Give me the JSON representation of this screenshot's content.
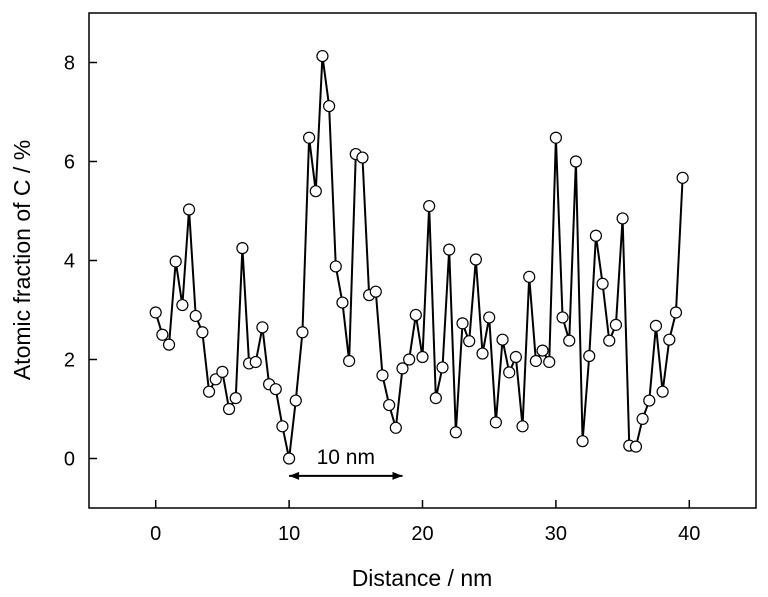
{
  "chart_data": {
    "type": "line",
    "title": "",
    "xlabel": "Distance / nm",
    "ylabel": "Atomic fraction of C / %",
    "xlim": [
      -5,
      45
    ],
    "ylim": [
      -1,
      9
    ],
    "xticks": [
      0,
      10,
      20,
      30,
      40
    ],
    "yticks": [
      0,
      2,
      4,
      6,
      8
    ],
    "grid": false,
    "marker": "open-circle",
    "series": [
      {
        "x": [
          0,
          0.5,
          1,
          1.5,
          2,
          2.5,
          3,
          3.5,
          4,
          4.5,
          5,
          5.5,
          6,
          6.5,
          7,
          7.5,
          8,
          8.5,
          9,
          9.5,
          10,
          10.5,
          11,
          11.5,
          12,
          12.5,
          13,
          13.5,
          14,
          14.5,
          15,
          15.5,
          16,
          16.5,
          17,
          17.5,
          18,
          18.5,
          19,
          19.5,
          20,
          20.5,
          21,
          21.5,
          22,
          22.5,
          23,
          23.5,
          24,
          24.5,
          25,
          25.5,
          26,
          26.5,
          27,
          27.5,
          28,
          28.5,
          29,
          29.5,
          30,
          30.5,
          31,
          31.5,
          32,
          32.5,
          33,
          33.5,
          34,
          34.5,
          35,
          35.5,
          36,
          36.5,
          37,
          37.5,
          38,
          38.5,
          39,
          39.5
        ],
        "values": [
          2.95,
          2.5,
          2.3,
          3.98,
          3.1,
          5.03,
          2.88,
          2.55,
          1.35,
          1.6,
          1.75,
          1.0,
          1.22,
          4.25,
          1.92,
          1.95,
          2.65,
          1.5,
          1.4,
          0.65,
          0.0,
          1.17,
          2.55,
          6.48,
          5.4,
          8.13,
          7.12,
          3.88,
          3.15,
          1.97,
          6.15,
          6.08,
          3.3,
          3.37,
          1.68,
          1.08,
          0.62,
          1.82,
          2.0,
          2.9,
          2.05,
          5.1,
          1.22,
          1.84,
          4.22,
          0.53,
          2.73,
          2.37,
          4.02,
          2.12,
          2.85,
          0.73,
          2.4,
          1.74,
          2.05,
          0.65,
          3.67,
          1.97,
          2.18,
          1.95,
          6.48,
          2.85,
          2.38,
          6.0,
          0.35,
          2.07,
          4.5,
          3.53,
          2.38,
          2.7,
          4.85,
          0.26,
          0.24,
          0.8,
          1.17,
          2.68,
          1.35,
          2.4,
          2.95,
          5.67
        ]
      }
    ],
    "annotation": {
      "text": "10 nm",
      "x_start": 10,
      "x_end": 18.5,
      "y": -0.35
    }
  }
}
